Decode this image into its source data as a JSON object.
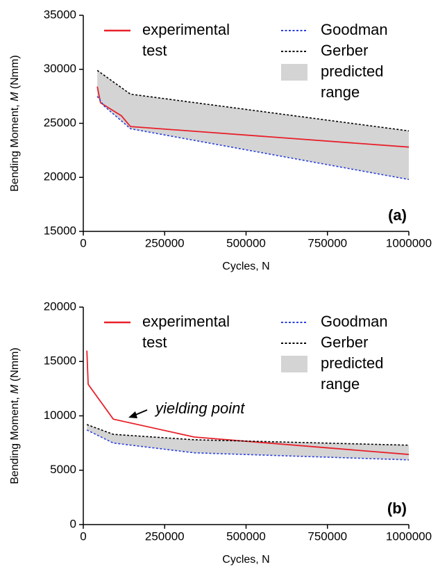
{
  "chart_data": [
    {
      "type": "line",
      "xlabel": "Cycles, N",
      "ylabel": [
        "Bending Moment, ",
        "M",
        " (Nmm)"
      ],
      "xlim": [
        0,
        1000000
      ],
      "xticks": [
        0,
        250000,
        500000,
        750000,
        1000000
      ],
      "ylim": [
        15000,
        35000
      ],
      "yticks": [
        15000,
        20000,
        25000,
        30000,
        35000
      ],
      "annotations": [
        "(a)"
      ],
      "series": [
        {
          "name": "experimental test",
          "color": "#e8202a",
          "dash": "solid",
          "x": [
            43000,
            53000,
            117000,
            145000,
            1000000
          ],
          "values": [
            28400,
            26900,
            25700,
            24700,
            22800
          ]
        },
        {
          "name": "Goodman",
          "color": "#2a3fe0",
          "dash": "dotted",
          "x": [
            43000,
            64000,
            145000,
            1000000
          ],
          "values": [
            27500,
            26600,
            24500,
            19800
          ]
        },
        {
          "name": "Gerber",
          "color": "#000000",
          "dash": "dotted",
          "x": [
            43000,
            145000,
            1000000
          ],
          "values": [
            29900,
            27700,
            24300
          ]
        }
      ],
      "fill": {
        "name": "predicted range",
        "color": "#d4d4d4"
      }
    },
    {
      "type": "line",
      "xlabel": "Cycles, N",
      "ylabel": [
        "Bending Moment, ",
        "M",
        " (Nmm)"
      ],
      "xlim": [
        0,
        1000000
      ],
      "xticks": [
        0,
        250000,
        500000,
        750000,
        1000000
      ],
      "ylim": [
        0,
        20000
      ],
      "yticks": [
        0,
        5000,
        10000,
        15000,
        20000
      ],
      "annotations": [
        "(b)",
        "yielding point"
      ],
      "series": [
        {
          "name": "experimental test",
          "color": "#e8202a",
          "dash": "solid",
          "x": [
            11000,
            15000,
            92000,
            341000,
            1000000
          ],
          "values": [
            16000,
            12900,
            9700,
            8050,
            6450
          ]
        },
        {
          "name": "Goodman",
          "color": "#2a3fe0",
          "dash": "dotted",
          "x": [
            11000,
            92000,
            341000,
            1000000
          ],
          "values": [
            8700,
            7500,
            6600,
            5950
          ]
        },
        {
          "name": "Gerber",
          "color": "#000000",
          "dash": "dotted",
          "x": [
            11000,
            92000,
            341000,
            1000000
          ],
          "values": [
            9200,
            8300,
            7800,
            7300
          ]
        }
      ],
      "fill": {
        "name": "predicted range",
        "color": "#d4d4d4"
      }
    }
  ]
}
